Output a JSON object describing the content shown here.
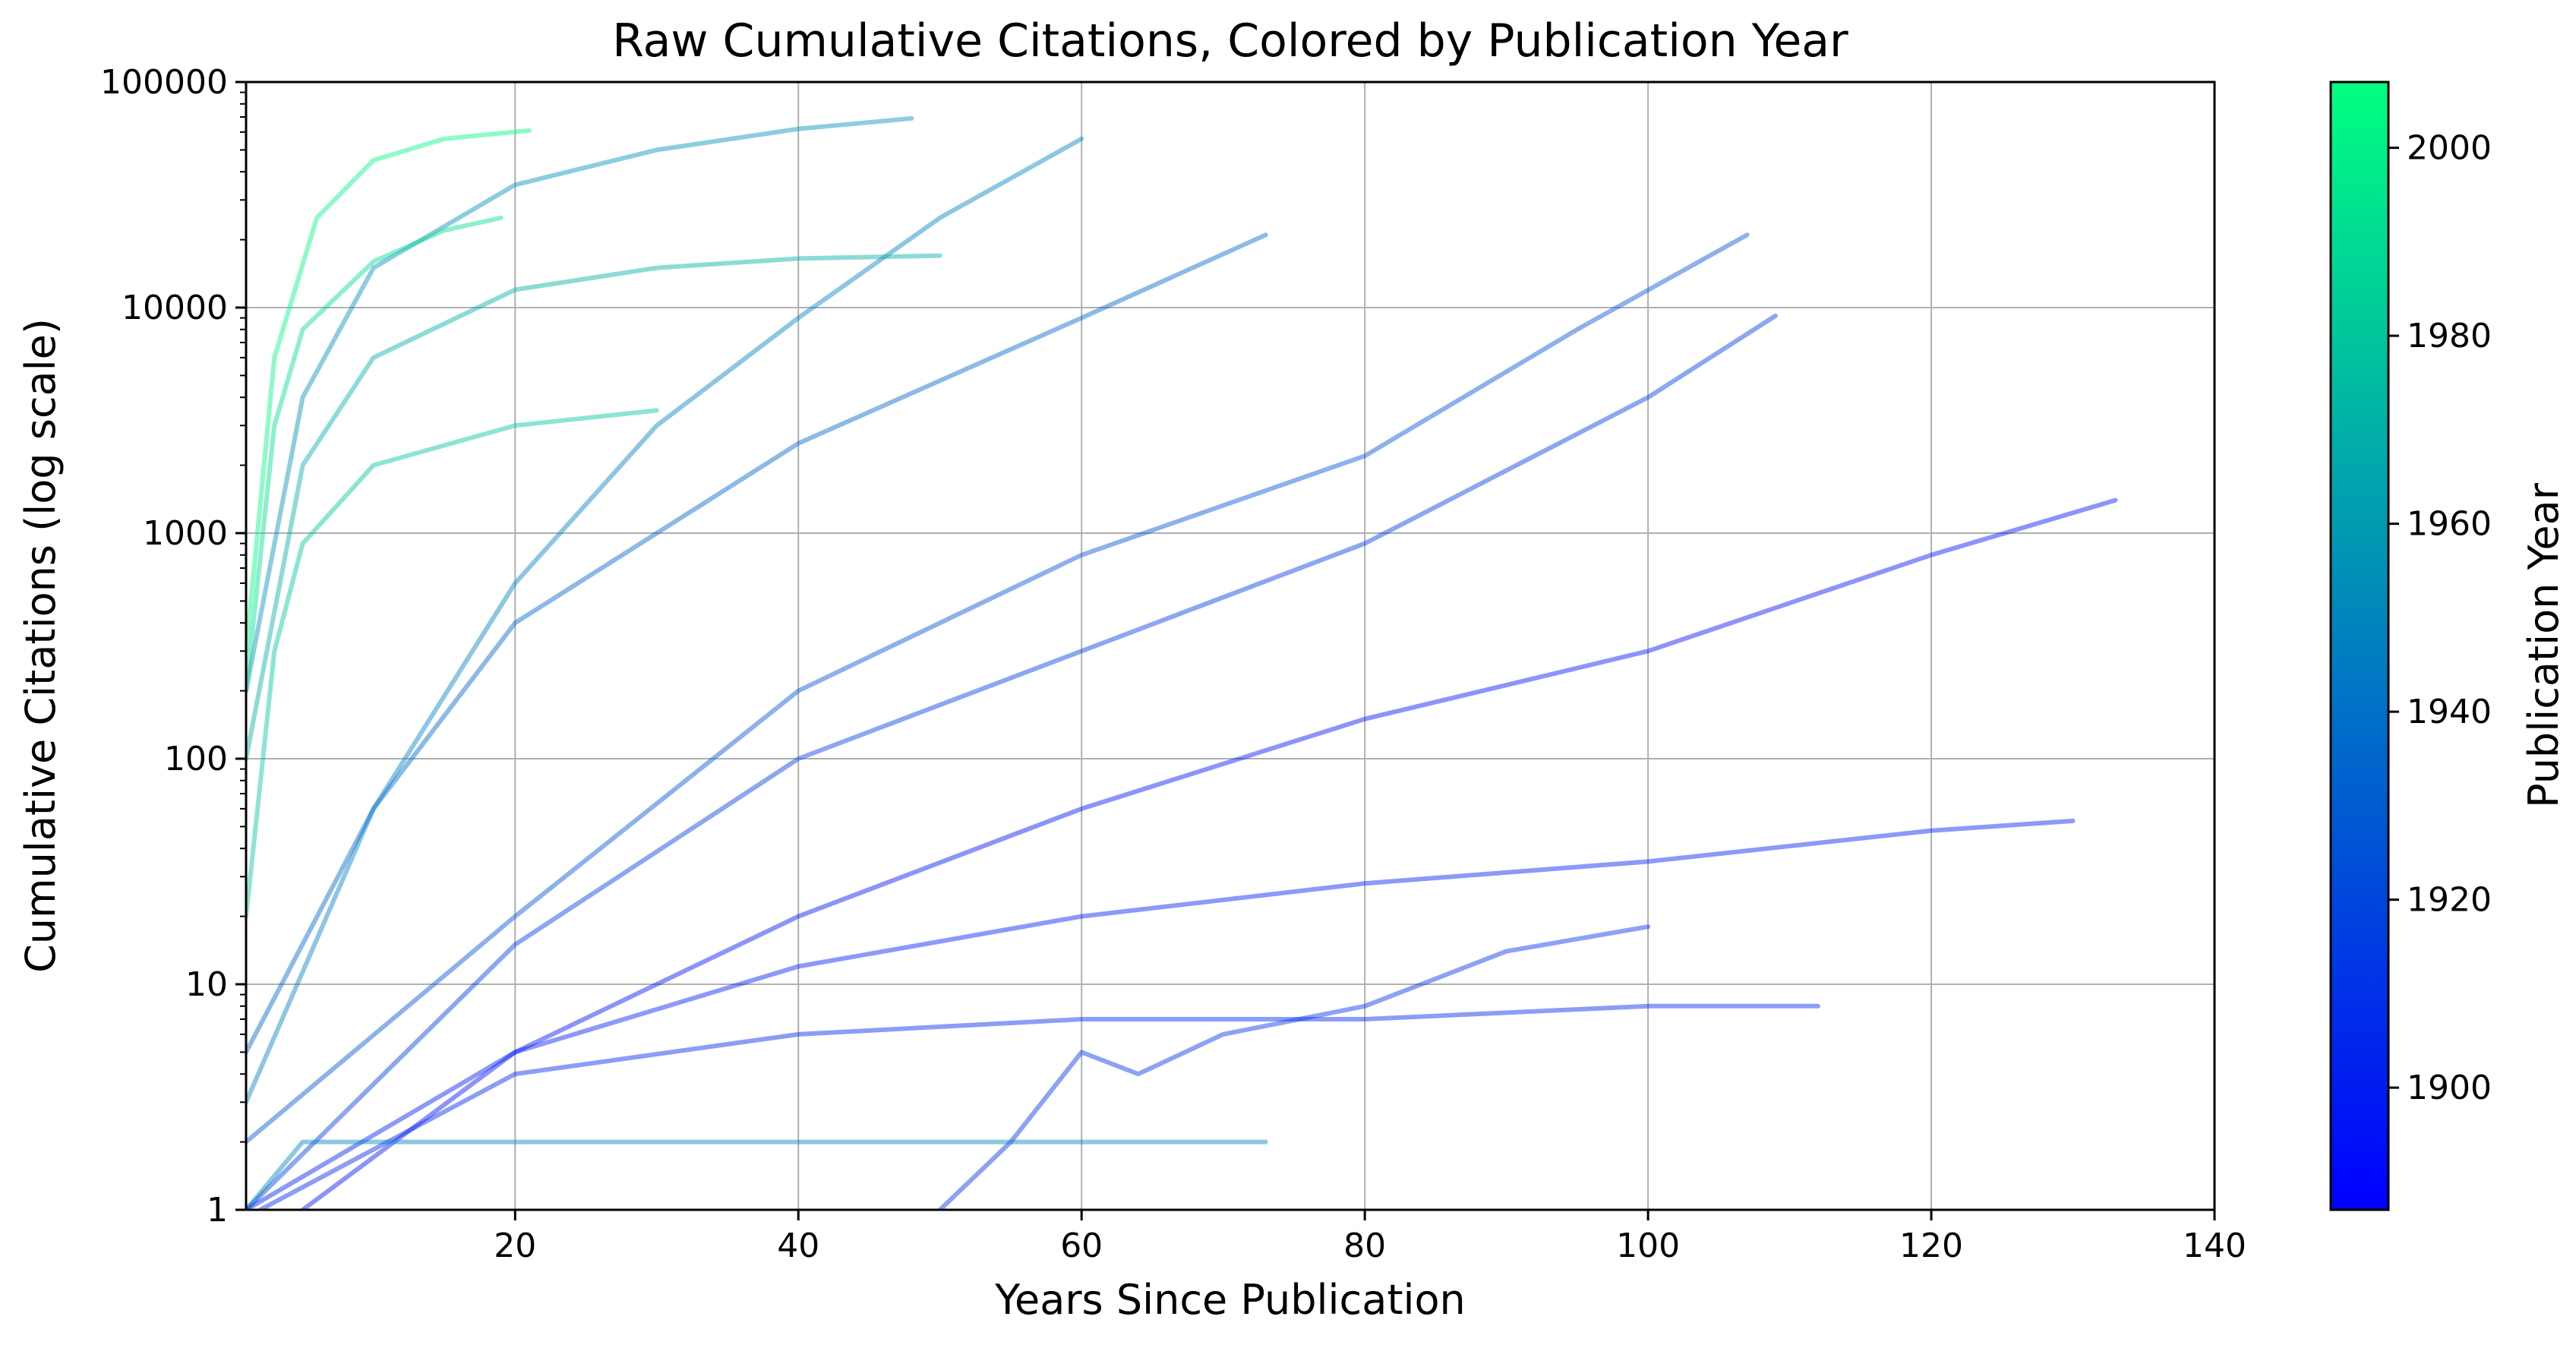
{
  "chart_data": {
    "type": "line",
    "title": "Raw Cumulative Citations, Colored by Publication Year",
    "xlabel": "Years Since Publication",
    "ylabel": "Cumulative Citations (log scale)",
    "xlim": [
      1,
      140
    ],
    "ylim": [
      1,
      100000
    ],
    "yscale": "log",
    "grid": true,
    "x_ticks": [
      20,
      40,
      60,
      80,
      100,
      120,
      140
    ],
    "y_ticks": [
      1,
      10,
      100,
      1000,
      10000,
      100000
    ],
    "colorbar": {
      "label": "Publication Year",
      "range": [
        1887,
        2007
      ],
      "ticks": [
        1900,
        1920,
        1940,
        1960,
        1980,
        2000
      ],
      "colormap": "winter",
      "color_low": "#0000ff",
      "color_high": "#00ff80"
    },
    "line_alpha": 0.15,
    "sample_series": [
      {
        "publication_year": 2003,
        "x": [
          1,
          3,
          6,
          10,
          15,
          21
        ],
        "y": [
          300,
          6000,
          25000,
          45000,
          56000,
          61000
        ]
      },
      {
        "publication_year": 1955,
        "x": [
          1,
          5,
          10,
          20,
          30,
          40,
          48
        ],
        "y": [
          200,
          4000,
          15000,
          35000,
          50000,
          62000,
          69000
        ]
      },
      {
        "publication_year": 1947,
        "x": [
          1,
          10,
          20,
          30,
          40,
          50,
          60
        ],
        "y": [
          3,
          60,
          600,
          3000,
          9000,
          25000,
          56000
        ]
      },
      {
        "publication_year": 1935,
        "x": [
          1,
          10,
          20,
          40,
          60,
          73
        ],
        "y": [
          5,
          60,
          400,
          2500,
          9000,
          21000
        ]
      },
      {
        "publication_year": 1925,
        "x": [
          1,
          20,
          40,
          60,
          80,
          95,
          107
        ],
        "y": [
          2,
          20,
          200,
          800,
          2200,
          8000,
          21000
        ]
      },
      {
        "publication_year": 1990,
        "x": [
          1,
          3,
          5,
          10,
          15,
          19
        ],
        "y": [
          200,
          3000,
          8000,
          16000,
          22000,
          25000
        ]
      },
      {
        "publication_year": 1970,
        "x": [
          1,
          5,
          10,
          20,
          30,
          40,
          50
        ],
        "y": [
          100,
          2000,
          6000,
          12000,
          15000,
          16500,
          17000
        ]
      },
      {
        "publication_year": 1915,
        "x": [
          1,
          20,
          40,
          60,
          80,
          100,
          109
        ],
        "y": [
          1,
          15,
          100,
          300,
          900,
          4000,
          9200
        ]
      },
      {
        "publication_year": 1895,
        "x": [
          5,
          20,
          40,
          60,
          80,
          100,
          120,
          133
        ],
        "y": [
          1,
          5,
          20,
          60,
          150,
          300,
          800,
          1400
        ]
      },
      {
        "publication_year": 1900,
        "x": [
          1,
          20,
          40,
          60,
          80,
          100,
          120,
          130
        ],
        "y": [
          1,
          5,
          12,
          20,
          28,
          35,
          48,
          53
        ]
      },
      {
        "publication_year": 1910,
        "x": [
          50,
          55,
          60,
          64,
          70,
          80,
          90,
          100
        ],
        "y": [
          1,
          2,
          5,
          4,
          6,
          8,
          14,
          18
        ]
      },
      {
        "publication_year": 1905,
        "x": [
          2,
          20,
          40,
          60,
          80,
          100,
          112
        ],
        "y": [
          1,
          4,
          6,
          7,
          7,
          8,
          8
        ]
      },
      {
        "publication_year": 1950,
        "x": [
          1,
          5,
          20,
          40,
          60,
          73
        ],
        "y": [
          1,
          2,
          2,
          2,
          2,
          2
        ]
      },
      {
        "publication_year": 1980,
        "x": [
          1,
          3,
          5,
          10,
          20,
          30
        ],
        "y": [
          20,
          300,
          900,
          2000,
          3000,
          3500
        ]
      }
    ]
  }
}
